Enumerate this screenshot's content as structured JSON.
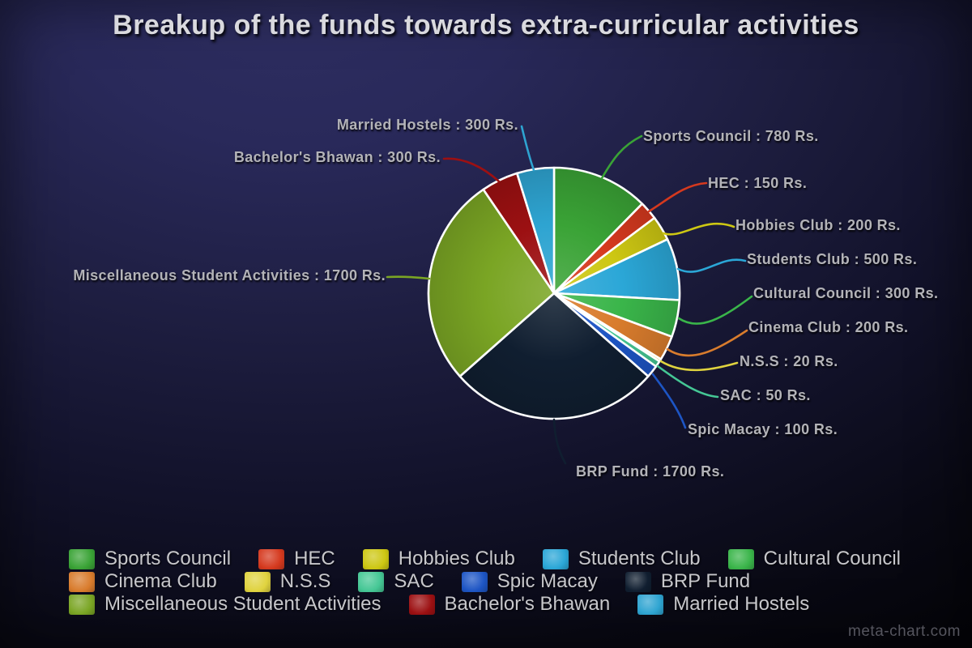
{
  "title": "Breakup of the funds towards extra-curricular activities",
  "watermark": "meta-chart.com",
  "chart_data": {
    "type": "pie",
    "title": "Breakup of the funds towards extra-curricular activities",
    "unit": "Rs.",
    "total": 6300,
    "start_angle_deg": 0,
    "direction": "clockwise",
    "legend_position": "bottom",
    "legend_rows": [
      [
        "Sports Council",
        "HEC",
        "Hobbies Club",
        "Students Club",
        "Cultural Council"
      ],
      [
        "Cinema Club",
        "N.S.S",
        "SAC",
        "Spic Macay",
        "BRP Fund"
      ],
      [
        "Miscellaneous Student Activities",
        "Bachelor's Bhawan",
        "Married Hostels"
      ]
    ],
    "slices": [
      {
        "label": "Sports Council",
        "value": 780,
        "color": "#3aa336",
        "callout": "Sports Council : 780 Rs."
      },
      {
        "label": "HEC",
        "value": 150,
        "color": "#d5391e",
        "callout": "HEC : 150 Rs."
      },
      {
        "label": "Hobbies Club",
        "value": 200,
        "color": "#cdc713",
        "callout": "Hobbies Club : 200 Rs."
      },
      {
        "label": "Students Club",
        "value": 500,
        "color": "#2ba7d7",
        "callout": "Students Club : 500 Rs."
      },
      {
        "label": "Cultural Council",
        "value": 300,
        "color": "#3ab54a",
        "callout": "Cultural Council : 300 Rs."
      },
      {
        "label": "Cinema Club",
        "value": 200,
        "color": "#d97c2d",
        "callout": "Cinema Club : 200 Rs."
      },
      {
        "label": "N.S.S",
        "value": 20,
        "color": "#e0d33f",
        "callout": "N.S.S : 20 Rs."
      },
      {
        "label": "SAC",
        "value": 50,
        "color": "#45c795",
        "callout": "SAC : 50 Rs."
      },
      {
        "label": "Spic Macay",
        "value": 100,
        "color": "#1d55c4",
        "callout": "Spic Macay : 100 Rs."
      },
      {
        "label": "BRP Fund",
        "value": 1700,
        "color": "#101e30",
        "callout": "BRP Fund : 1700 Rs."
      },
      {
        "label": "Miscellaneous Student Activities",
        "value": 1700,
        "color": "#7aa524",
        "callout": "Miscellaneous Student Activities : 1700 Rs."
      },
      {
        "label": "Bachelor's Bhawan",
        "value": 300,
        "color": "#9c1012",
        "callout": "Bachelor's Bhawan : 300 Rs."
      },
      {
        "label": "Married Hostels",
        "value": 300,
        "color": "#2ea4d1",
        "callout": "Married Hostels : 300 Rs."
      }
    ]
  }
}
